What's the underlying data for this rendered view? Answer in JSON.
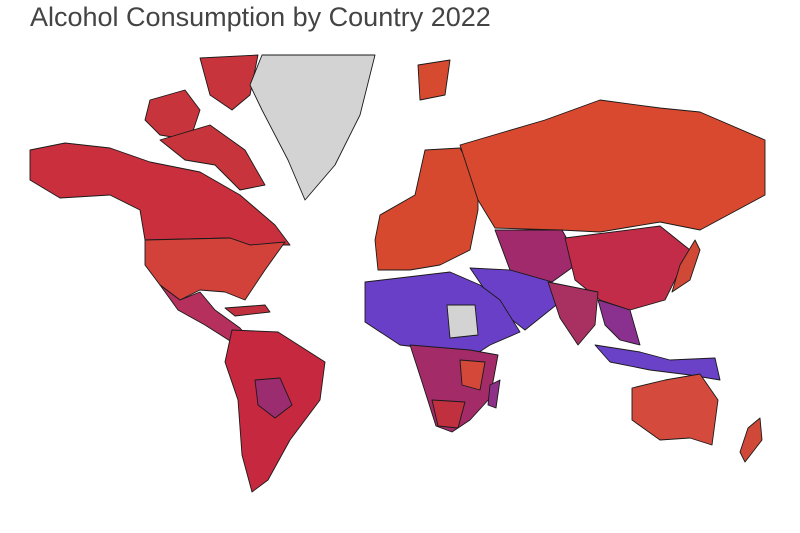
{
  "title": "Alcohol Consumption by Country 2022"
}
